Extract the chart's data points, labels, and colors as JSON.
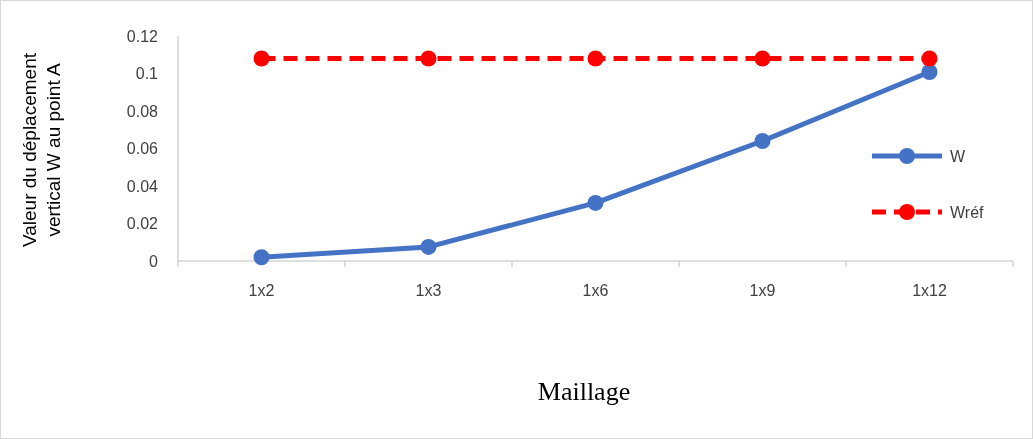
{
  "chart_data": {
    "type": "line",
    "xlabel": "Maillage",
    "ylabel": "Valeur du déplacement vertical W au point A",
    "categories": [
      "1x2",
      "1x3",
      "1x6",
      "1x9",
      "1x12"
    ],
    "series": [
      {
        "name": "W",
        "color": "#4472c4",
        "values": [
          0.002,
          0.0075,
          0.031,
          0.064,
          0.1008
        ],
        "line_style": "solid"
      },
      {
        "name": "Wréf",
        "color": "#ff0000",
        "values": [
          0.108,
          0.108,
          0.108,
          0.108,
          0.108
        ],
        "line_style": "dashed"
      }
    ],
    "ylim": [
      0,
      0.12
    ],
    "yticks": [
      0,
      0.02,
      0.04,
      0.06,
      0.08,
      0.1,
      0.12
    ],
    "grid": false,
    "legend": "right",
    "marker": "circle"
  }
}
